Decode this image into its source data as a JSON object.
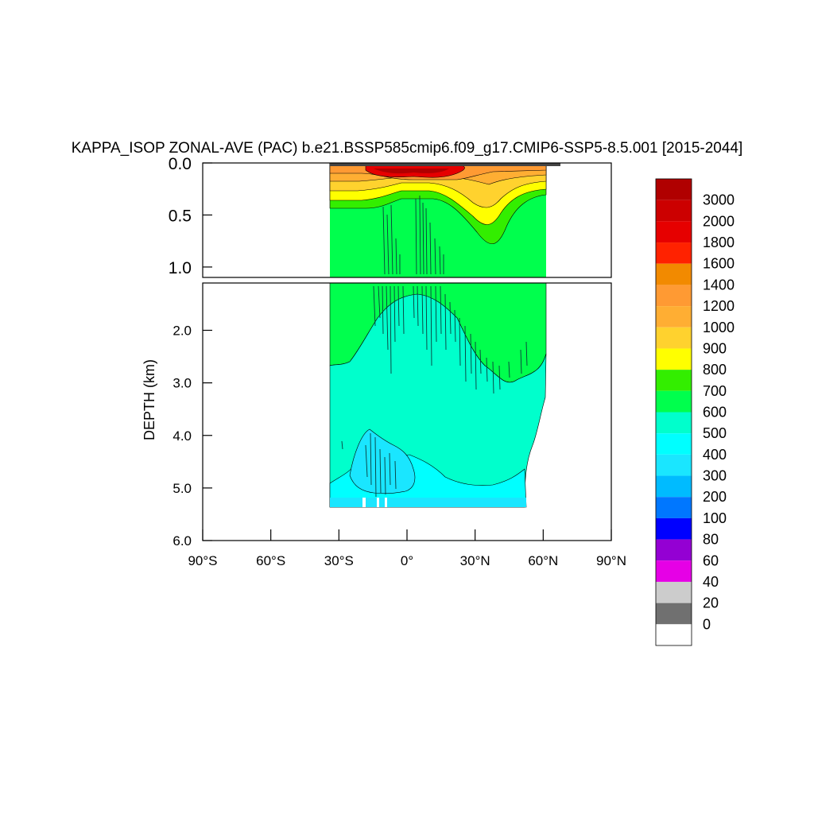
{
  "chart_data": {
    "type": "heatmap",
    "title": "KAPPA_ISOP ZONAL-AVE (PAC) b.e21.BSSP585cmip6.f09_g17.CMIP6-SSP5-8.5.001 [2015-2044]",
    "ylabel": "DEPTH (km)",
    "xlabel": "",
    "x_ticks": [
      "90°S",
      "60°S",
      "30°S",
      "0°",
      "30°N",
      "60°N",
      "90°N"
    ],
    "x_tick_values": [
      -90,
      -60,
      -30,
      0,
      30,
      60,
      90
    ],
    "xlim": [
      -90,
      90
    ],
    "upper_panel": {
      "ylim": [
        0.0,
        1.1
      ],
      "y_ticks": [
        "0.0",
        "0.5",
        "1.0"
      ],
      "y_tick_values": [
        0.0,
        0.5,
        1.0
      ]
    },
    "lower_panel": {
      "ylim": [
        1.1,
        6.0
      ],
      "y_ticks": [
        "2.0",
        "3.0",
        "4.0",
        "5.0",
        "6.0"
      ],
      "y_tick_values": [
        2.0,
        3.0,
        4.0,
        5.0,
        6.0
      ]
    },
    "colorbar": {
      "levels": [
        "3000",
        "2000",
        "1800",
        "1600",
        "1400",
        "1200",
        "1000",
        "900",
        "800",
        "700",
        "600",
        "500",
        "400",
        "300",
        "200",
        "100",
        "80",
        "60",
        "40",
        "20",
        "0"
      ],
      "colors": [
        "#b00000",
        "#cc0000",
        "#e60000",
        "#ff2200",
        "#f28a00",
        "#ff9a33",
        "#ffae33",
        "#ffd22e",
        "#ffff00",
        "#33ee00",
        "#00ff4d",
        "#00ffcc",
        "#00ffff",
        "#1ae6ff",
        "#00bbff",
        "#0077ff",
        "#0000ff",
        "#9400d3",
        "#e600e6",
        "#cccccc",
        "#707070",
        "#ffffff"
      ]
    },
    "data_domain": {
      "lat_range": [
        -35,
        62
      ],
      "max_depth_km": 5.37
    }
  }
}
